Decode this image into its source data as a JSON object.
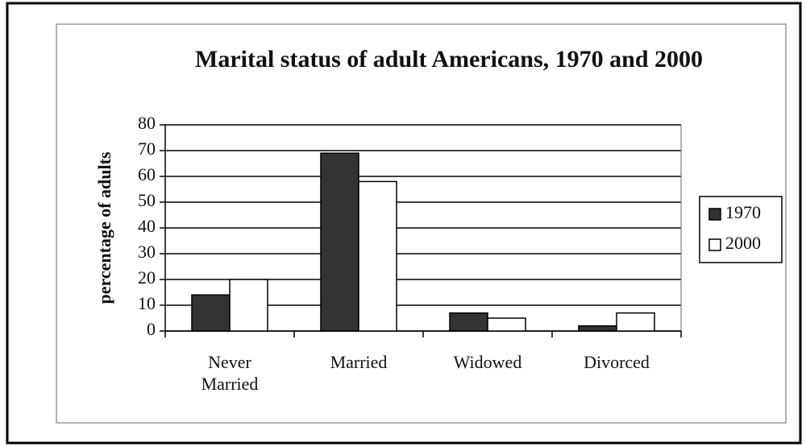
{
  "chart_data": {
    "type": "bar",
    "title": "Marital status of adult Americans, 1970 and 2000",
    "y_label": "percentage of adults",
    "categories": [
      "Never Married",
      "Married",
      "Widowed",
      "Divorced"
    ],
    "series": [
      {
        "name": "1970",
        "color": "#333333",
        "values": [
          14,
          69,
          7,
          2
        ]
      },
      {
        "name": "2000",
        "color": "#ffffff",
        "values": [
          20,
          58,
          5,
          7
        ]
      }
    ],
    "ylim": [
      0,
      80
    ],
    "yticks": [
      0,
      10,
      20,
      30,
      40,
      50,
      60,
      70,
      80
    ],
    "grid": true,
    "legend": "right"
  }
}
